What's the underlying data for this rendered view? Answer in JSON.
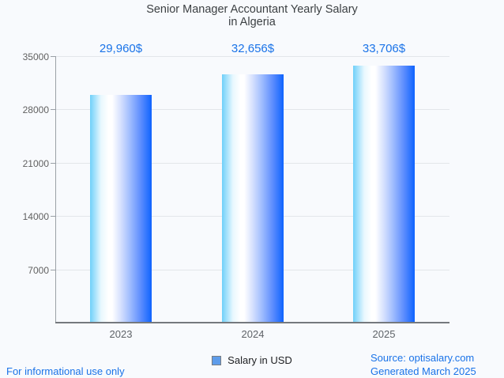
{
  "header": {
    "title_line1": "Senior Manager Accountant Yearly Salary",
    "title_line2": "in Algeria"
  },
  "chart_data": {
    "type": "bar",
    "title": "Senior Manager Accountant Yearly Salary in Algeria",
    "categories": [
      "2023",
      "2024",
      "2025"
    ],
    "values": [
      29960,
      32656,
      33706
    ],
    "value_labels": [
      "29,960$",
      "32,656$",
      "33,706$"
    ],
    "series": [
      {
        "name": "Salary in USD",
        "values": [
          29960,
          32656,
          33706
        ]
      }
    ],
    "xlabel": "",
    "ylabel": "",
    "ylim": [
      0,
      35000
    ],
    "yticks": [
      7000,
      14000,
      21000,
      28000,
      35000
    ],
    "grid": true,
    "legend_position": "bottom"
  },
  "legend": {
    "label": "Salary in USD",
    "swatch_color": "#5e9cea"
  },
  "footer": {
    "disclaimer": "For informational use only",
    "source": "Source: optisalary.com",
    "generated": "Generated March 2025"
  },
  "colors": {
    "background": "#f8fafd",
    "accent_blue": "#1a73e8",
    "title_text": "#3c4043",
    "axis_text": "#616161",
    "bar_gradient_left": "#6fd0fa",
    "bar_gradient_mid": "#ffffff",
    "bar_gradient_right": "#0e63fe",
    "gridline": "#e3e6ea",
    "axis_line": "#75797e"
  }
}
